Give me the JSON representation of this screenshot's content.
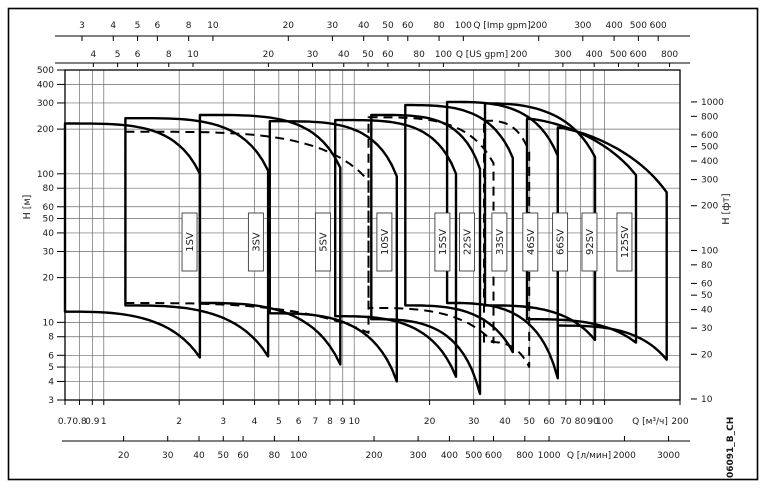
{
  "figure": {
    "id_label": "06091_B_CH",
    "background": "#ffffff",
    "border_color": "#000000",
    "curve_color": "#000000",
    "grid_color": "#6b6b6b",
    "label_box_border": "#3c3c3c"
  },
  "chart_data": {
    "type": "area",
    "subtype": "pump-family-envelope",
    "title": "",
    "xlabel": "Q [м³/ч]",
    "ylabel": "H [м]",
    "x_scale": "log",
    "y_scale": "log",
    "xlim": [
      0.7,
      200
    ],
    "ylim": [
      3,
      500
    ],
    "grid": true,
    "axes": {
      "top_imp": {
        "title": "Q [Imp gpm]",
        "ticks": [
          3,
          4,
          5,
          6,
          8,
          10,
          20,
          30,
          40,
          50,
          60,
          80,
          100,
          200,
          300,
          400,
          500,
          600
        ],
        "m3h_per_unit": 0.272766
      },
      "top_us": {
        "title": "Q [US gpm]",
        "ticks": [
          4,
          5,
          6,
          8,
          10,
          20,
          30,
          40,
          50,
          60,
          80,
          100,
          200,
          300,
          400,
          500,
          600,
          800
        ],
        "m3h_per_unit": 0.227125
      },
      "left_m": {
        "title": "H [м]",
        "ticks": [
          500,
          400,
          300,
          200,
          100,
          80,
          60,
          50,
          40,
          30,
          20,
          10,
          8,
          6,
          5,
          4,
          3
        ]
      },
      "right_ft": {
        "title": "H [фт]",
        "ticks": [
          1000,
          800,
          600,
          500,
          400,
          300,
          200,
          100,
          80,
          60,
          50,
          40,
          30,
          20,
          10
        ],
        "m_per_unit": 0.3048
      },
      "bottom_m3h": {
        "title": "Q [м³/ч]",
        "ticks": [
          0.7,
          0.8,
          0.9,
          1,
          2,
          3,
          4,
          5,
          6,
          7,
          8,
          9,
          10,
          20,
          30,
          40,
          50,
          60,
          70,
          80,
          90,
          100,
          200
        ]
      },
      "bottom_lmin": {
        "title": "Q [л/мин]",
        "ticks": [
          20,
          30,
          40,
          50,
          60,
          80,
          100,
          200,
          300,
          400,
          500,
          600,
          800,
          1000,
          2000,
          3000
        ],
        "m3h_per_unit": 0.06
      }
    },
    "series": [
      {
        "name": "1SV",
        "q_min": 0.7,
        "q_max": 2.42,
        "h_top": 218,
        "h_knee": 100,
        "h_bot_left": 11.8,
        "h_bot_end": 5.8,
        "p_top": 3.8,
        "label_q": 2.2
      },
      {
        "name": "3SV",
        "q_min": 1.22,
        "q_max": 4.53,
        "h_top": 237,
        "h_knee": 105,
        "h_bot_left": 13.0,
        "h_bot_end": 5.9,
        "p_top": 3.8,
        "label_q": 4.05
      },
      {
        "name": "5SV",
        "q_min": 2.42,
        "q_max": 8.8,
        "h_top": 249,
        "h_knee": 110,
        "h_bot_left": 13.5,
        "h_bot_end": 5.2,
        "p_top": 3.8,
        "label_q": 7.5
      },
      {
        "name": "10SV",
        "q_min": 4.6,
        "q_max": 14.8,
        "h_top": 226,
        "h_knee": 96,
        "h_bot_left": 11.5,
        "h_bot_end": 4.0,
        "p_top": 3.8,
        "label_q": 13.2
      },
      {
        "name": "15SV",
        "q_min": 8.4,
        "q_max": 25.5,
        "h_top": 230,
        "h_knee": 100,
        "h_bot_left": 11.0,
        "h_bot_end": 4.3,
        "p_top": 3.8,
        "label_q": 22.5
      },
      {
        "name": "22SV",
        "q_min": 11.7,
        "q_max": 31.8,
        "h_top": 249,
        "h_knee": 108,
        "h_bot_left": 10.5,
        "h_bot_end": 3.3,
        "p_top": 3.8,
        "label_q": 28.2
      },
      {
        "name": "33SV",
        "q_min": 16.0,
        "q_max": 43.0,
        "h_top": 290,
        "h_knee": 128,
        "h_bot_left": 13.0,
        "h_bot_end": 6.3,
        "p_top": 3.2,
        "label_q": 38.0
      },
      {
        "name": "46SV",
        "q_min": 23.5,
        "q_max": 65.0,
        "h_top": 305,
        "h_knee": 132,
        "h_bot_left": 13.5,
        "h_bot_end": 4.2,
        "p_top": 3.2,
        "label_q": 50.5
      },
      {
        "name": "66SV",
        "q_min": 33.3,
        "q_max": 91.5,
        "h_top": 298,
        "h_knee": 130,
        "h_bot_left": 13.0,
        "h_bot_end": 7.6,
        "p_top": 2.6,
        "label_q": 66.4
      },
      {
        "name": "92SV",
        "q_min": 49.0,
        "q_max": 133.5,
        "h_top": 235,
        "h_knee": 98,
        "h_bot_left": 10.5,
        "h_bot_end": 7.3,
        "p_top": 1.5,
        "label_q": 87.0
      },
      {
        "name": "125SV",
        "q_min": 65.0,
        "q_max": 177.0,
        "h_top": 205,
        "h_knee": 75,
        "h_bot_left": 9.5,
        "h_bot_end": 5.6,
        "p_top": 1.35,
        "label_q": 120.0
      }
    ],
    "dashed_envelopes": [
      {
        "name": "dashed-range-1",
        "q_min": 1.22,
        "q_max": 11.4,
        "h_top": 192,
        "h_knee": 90,
        "h_bot_left": 13.5,
        "h_bot_end": 8.5,
        "p_top": 3.8
      },
      {
        "name": "dashed-range-2",
        "q_min": 11.4,
        "q_max": 36.0,
        "h_top": 240,
        "h_knee": 118,
        "h_bot_left": 12.5,
        "h_bot_end": 7.3,
        "p_top": 3.5
      },
      {
        "name": "dashed-range-3",
        "q_min": 33.0,
        "q_max": 50.0,
        "h_top": 228,
        "h_knee": 140,
        "h_bot_left": 7.4,
        "h_bot_end": 5.0,
        "p_top": 3.0
      }
    ],
    "legend": null
  }
}
